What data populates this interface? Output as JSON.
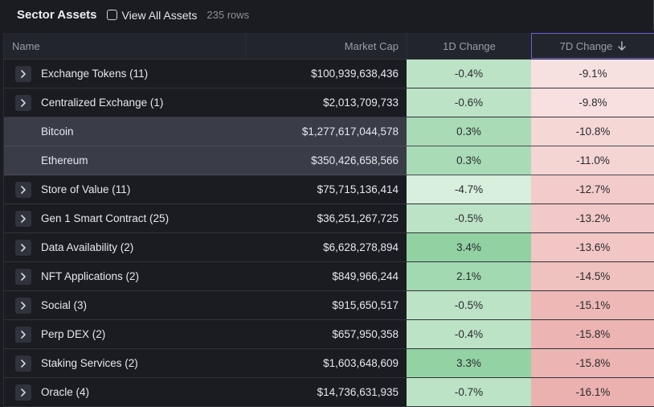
{
  "header": {
    "title": "Sector Assets",
    "view_all_label": "View All Assets",
    "row_count": "235 rows"
  },
  "columns": {
    "name": "Name",
    "market_cap": "Market Cap",
    "change_1d": "1D Change",
    "change_7d": "7D Change"
  },
  "rows": [
    {
      "name": "Exchange Tokens (11)",
      "market_cap": "$100,939,638,436",
      "change_1d": "-0.4%",
      "change_7d": "-9.1%",
      "c1": "#bde3c7",
      "c7": "#f7e1e0",
      "child": false
    },
    {
      "name": "Centralized Exchange (1)",
      "market_cap": "$2,013,709,733",
      "change_1d": "-0.6%",
      "change_7d": "-9.8%",
      "c1": "#bde3c7",
      "c7": "#f7e0df",
      "child": false
    },
    {
      "name": "Bitcoin",
      "market_cap": "$1,277,617,044,578",
      "change_1d": "0.3%",
      "change_7d": "-10.8%",
      "c1": "#a9dbb6",
      "c7": "#f5d7d6",
      "child": true
    },
    {
      "name": "Ethereum",
      "market_cap": "$350,426,658,566",
      "change_1d": "0.3%",
      "change_7d": "-11.0%",
      "c1": "#a9dbb6",
      "c7": "#f4d5d4",
      "child": true
    },
    {
      "name": "Store of Value (11)",
      "market_cap": "$75,715,136,414",
      "change_1d": "-4.7%",
      "change_7d": "-12.7%",
      "c1": "#d7efdc",
      "c7": "#f2cbca",
      "child": false
    },
    {
      "name": "Gen 1 Smart Contract (25)",
      "market_cap": "$36,251,267,725",
      "change_1d": "-0.5%",
      "change_7d": "-13.2%",
      "c1": "#bde3c7",
      "c7": "#f2c9c8",
      "child": false
    },
    {
      "name": "Data Availability (2)",
      "market_cap": "$6,628,278,894",
      "change_1d": "3.4%",
      "change_7d": "-13.6%",
      "c1": "#92d1a2",
      "c7": "#f1c6c5",
      "child": false
    },
    {
      "name": "NFT Applications (2)",
      "market_cap": "$849,966,244",
      "change_1d": "2.1%",
      "change_7d": "-14.5%",
      "c1": "#a3d9b0",
      "c7": "#efc1bf",
      "child": false
    },
    {
      "name": "Social (3)",
      "market_cap": "$915,650,517",
      "change_1d": "-0.5%",
      "change_7d": "-15.1%",
      "c1": "#bde3c7",
      "c7": "#edb8b6",
      "child": false
    },
    {
      "name": "Perp DEX (2)",
      "market_cap": "$657,950,358",
      "change_1d": "-0.4%",
      "change_7d": "-15.8%",
      "c1": "#bde3c7",
      "c7": "#ecb4b2",
      "child": false
    },
    {
      "name": "Staking Services (2)",
      "market_cap": "$1,603,648,609",
      "change_1d": "3.3%",
      "change_7d": "-15.8%",
      "c1": "#93d2a3",
      "c7": "#ecb4b2",
      "child": false
    },
    {
      "name": "Oracle (4)",
      "market_cap": "$14,736,631,935",
      "change_1d": "-0.7%",
      "change_7d": "-16.1%",
      "c1": "#bde3c7",
      "c7": "#ebb1af",
      "child": false
    }
  ],
  "icons": {
    "expand": "chevron-right-icon",
    "sort": "arrow-down-icon"
  },
  "colors": {
    "accent_border": "#6d5fd8",
    "background": "#1b1c22"
  }
}
